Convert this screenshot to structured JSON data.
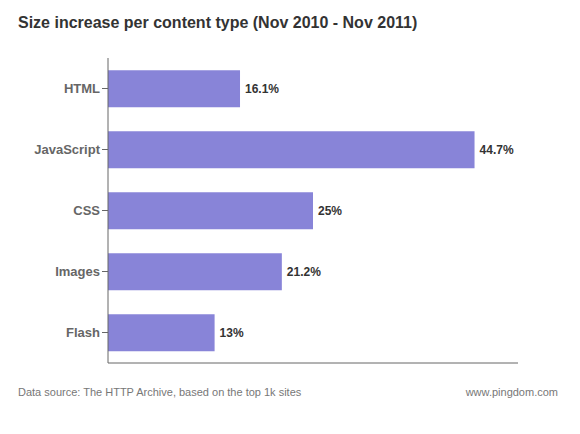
{
  "chart_data": {
    "type": "bar",
    "title": "Size increase per content type (Nov 2010 - Nov 2011)",
    "orientation": "horizontal",
    "categories": [
      "HTML",
      "JavaScript",
      "CSS",
      "Images",
      "Flash"
    ],
    "values": [
      16.1,
      44.7,
      25.0,
      21.2,
      13.0
    ],
    "value_labels": [
      "16.1%",
      "44.7%",
      "25%",
      "21.2%",
      "13%"
    ],
    "data_labels": true,
    "xlim": [
      0,
      50
    ],
    "tick_labels": "y",
    "grid": false,
    "annotations": [
      "Data source: The HTTP Archive, based on the top 1k sites",
      "www.pingdom.com"
    ]
  }
}
